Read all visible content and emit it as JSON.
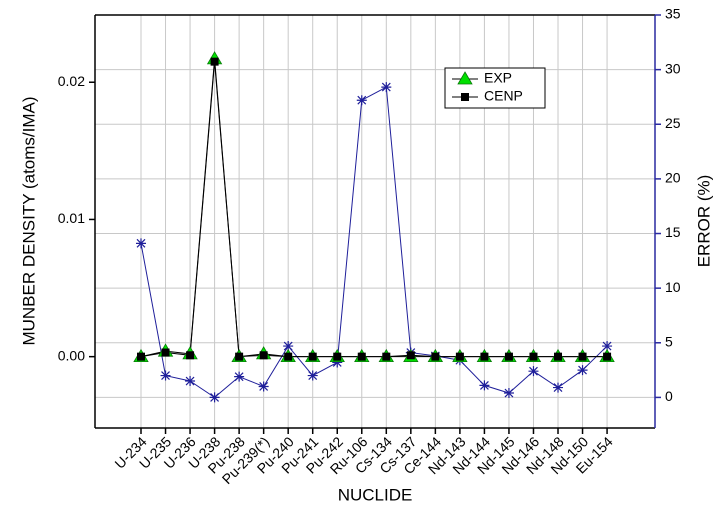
{
  "chart_data": {
    "type": "line",
    "x_label": "NUCLIDE",
    "y_label": "MUNBER DENSITY (atoms/IMA)",
    "y2_label": "ERROR (%)",
    "categories": [
      "U-234",
      "U-235",
      "U-236",
      "U-238",
      "Pu-238",
      "Pu-239(*)",
      "Pu-240",
      "Pu-241",
      "Pu-242",
      "Ru-106",
      "Cs-134",
      "Cs-137",
      "Ce-144",
      "Nd-143",
      "Nd-144",
      "Nd-145",
      "Nd-146",
      "Nd-148",
      "Nd-150",
      "Eu-154"
    ],
    "series": [
      {
        "name": "EXP",
        "color": "#00e000",
        "marker": "triangle",
        "values": [
          0,
          0.0004,
          0.0002,
          0.0217,
          0,
          0.0002,
          0,
          0,
          0,
          0,
          0,
          0,
          0,
          0,
          0,
          0,
          0,
          0,
          0,
          0
        ]
      },
      {
        "name": "CENP",
        "color": "#000000",
        "marker": "square",
        "values": [
          0,
          0.0003,
          0.0001,
          0.0215,
          0,
          0.0001,
          0,
          0,
          0,
          0,
          0,
          0.0001,
          0,
          0,
          0,
          0,
          0,
          0,
          0,
          0
        ]
      },
      {
        "color": "#1f1f9a",
        "marker": "star",
        "axis": "y2",
        "values": [
          14.1,
          2.0,
          1.5,
          0,
          1.9,
          1.0,
          4.7,
          2.0,
          3.2,
          27.2,
          28.4,
          4.1,
          3.8,
          3.4,
          1.1,
          0.4,
          2.4,
          0.9,
          2.5,
          4.7
        ]
      }
    ],
    "ylim": [
      -0.0052,
      0.0249
    ],
    "yticks": [
      {
        "value": 0,
        "label": "0.00"
      },
      {
        "value": 0.01,
        "label": "0.01"
      },
      {
        "value": 0.02,
        "label": "0.02"
      }
    ],
    "y2lim": [
      -2.8,
      35
    ],
    "y2ticks": [
      0,
      5,
      10,
      15,
      20,
      25,
      30,
      35
    ],
    "grid": true,
    "legend": "upper-right"
  }
}
